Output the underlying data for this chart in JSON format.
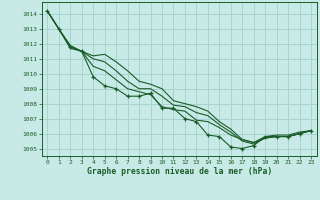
{
  "title": "Graphe pression niveau de la mer (hPa)",
  "bg_color": "#c8eae6",
  "grid_color": "#a8d4d0",
  "line_color": "#1a5c28",
  "marker": "+",
  "xlim": [
    -0.5,
    23.5
  ],
  "ylim": [
    1004.5,
    1014.8
  ],
  "yticks": [
    1005,
    1006,
    1007,
    1008,
    1009,
    1010,
    1011,
    1012,
    1013,
    1014
  ],
  "xticks": [
    0,
    1,
    2,
    3,
    4,
    5,
    6,
    7,
    8,
    9,
    10,
    11,
    12,
    13,
    14,
    15,
    16,
    17,
    18,
    19,
    20,
    21,
    22,
    23
  ],
  "series": [
    {
      "y": [
        1014.2,
        1013.0,
        1011.8,
        1011.5,
        1009.8,
        1009.2,
        1009.0,
        1008.5,
        1008.5,
        1008.7,
        1007.7,
        1007.7,
        1007.0,
        1006.8,
        1005.9,
        1005.8,
        1005.1,
        1005.0,
        1005.2,
        1005.8,
        1005.8,
        1005.8,
        1006.0,
        1006.2
      ],
      "markers": true
    },
    {
      "y": [
        1014.2,
        1013.0,
        1011.9,
        1011.5,
        1010.5,
        1010.2,
        1009.6,
        1009.0,
        1008.8,
        1008.6,
        1007.8,
        1007.6,
        1007.5,
        1006.9,
        1006.8,
        1006.4,
        1005.9,
        1005.6,
        1005.4,
        1005.7,
        1005.8,
        1005.8,
        1006.0,
        1006.2
      ],
      "markers": false
    },
    {
      "y": [
        1014.2,
        1013.0,
        1011.8,
        1011.5,
        1011.0,
        1010.8,
        1010.2,
        1009.5,
        1009.0,
        1009.0,
        1008.5,
        1007.9,
        1007.8,
        1007.4,
        1007.2,
        1006.6,
        1006.1,
        1005.5,
        1005.3,
        1005.7,
        1005.8,
        1005.8,
        1006.0,
        1006.2
      ],
      "markers": false
    },
    {
      "y": [
        1014.2,
        1013.0,
        1011.7,
        1011.5,
        1011.2,
        1011.3,
        1010.8,
        1010.2,
        1009.5,
        1009.3,
        1009.0,
        1008.2,
        1008.0,
        1007.8,
        1007.5,
        1006.8,
        1006.3,
        1005.6,
        1005.4,
        1005.8,
        1005.9,
        1005.9,
        1006.1,
        1006.2
      ],
      "markers": false
    }
  ]
}
